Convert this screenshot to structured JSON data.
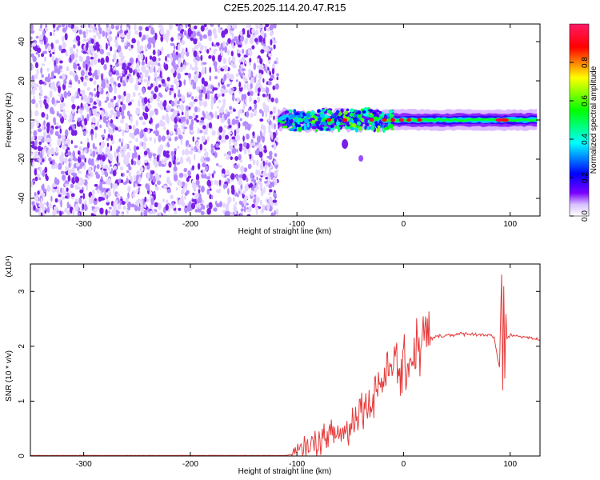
{
  "title": "C2E5.2025.114.20.47.R15",
  "chart_data": [
    {
      "type": "heatmap",
      "title": "C2E5.2025.114.20.47.R15",
      "xlabel": "Height of straight line (km)",
      "ylabel": "Frequency (Hz)",
      "xlim": [
        -350,
        128
      ],
      "ylim": [
        -49,
        49
      ],
      "x_ticks": [
        -300,
        -200,
        -100,
        0,
        100
      ],
      "y_ticks": [
        -40,
        -20,
        0,
        20,
        40
      ],
      "colorbar": {
        "label": "Normalized spectral amplitude",
        "range": [
          0,
          1
        ],
        "ticks": [
          "0.0",
          "0.2",
          "0.4",
          "0.6",
          "0.8"
        ],
        "colors": [
          "#ffffff",
          "#7a00ff",
          "#0000ff",
          "#00ffff",
          "#00ff00",
          "#ffff00",
          "#ff0000",
          "#ff0066"
        ]
      },
      "regions": [
        {
          "x": [
            -350,
            -118
          ],
          "description": "scattered low-amplitude noise"
        },
        {
          "x": [
            -118,
            128
          ],
          "y_center": 0,
          "peak_amplitude": 1.0
        }
      ],
      "grid": false
    },
    {
      "type": "line",
      "xlabel": "Height of straight line (km)",
      "ylabel": "SNR (10 * v/v)",
      "y_multiplier": "(x10⁴)",
      "xlim": [
        -350,
        128
      ],
      "ylim": [
        0,
        3.5
      ],
      "x_ticks": [
        -300,
        -200,
        -100,
        0,
        100
      ],
      "y_ticks": [
        0,
        1,
        2,
        3
      ],
      "series": [
        {
          "color": "#e63a3a",
          "x": [
            -350,
            -300,
            -250,
            -200,
            -150,
            -110,
            -100,
            -90,
            -80,
            -70,
            -60,
            -50,
            -45,
            -40,
            -30,
            -25,
            -20,
            -15,
            -10,
            -5,
            0,
            5,
            10,
            20,
            30,
            40,
            50,
            60,
            70,
            80,
            85,
            90,
            92,
            93,
            94,
            95,
            96,
            97,
            100,
            110,
            120,
            128
          ],
          "y": [
            0.01,
            0.01,
            0.01,
            0.01,
            0.01,
            0.01,
            0.05,
            0.2,
            0.25,
            0.35,
            0.4,
            0.5,
            0.8,
            0.9,
            1.0,
            1.4,
            1.3,
            1.6,
            1.8,
            1.5,
            1.6,
            1.7,
            1.9,
            2.1,
            2.17,
            2.2,
            2.22,
            2.23,
            2.22,
            2.2,
            2.15,
            1.6,
            3.3,
            1.2,
            3.1,
            1.4,
            2.6,
            2.15,
            2.2,
            2.18,
            2.15,
            2.12
          ]
        }
      ],
      "grid": false
    }
  ]
}
